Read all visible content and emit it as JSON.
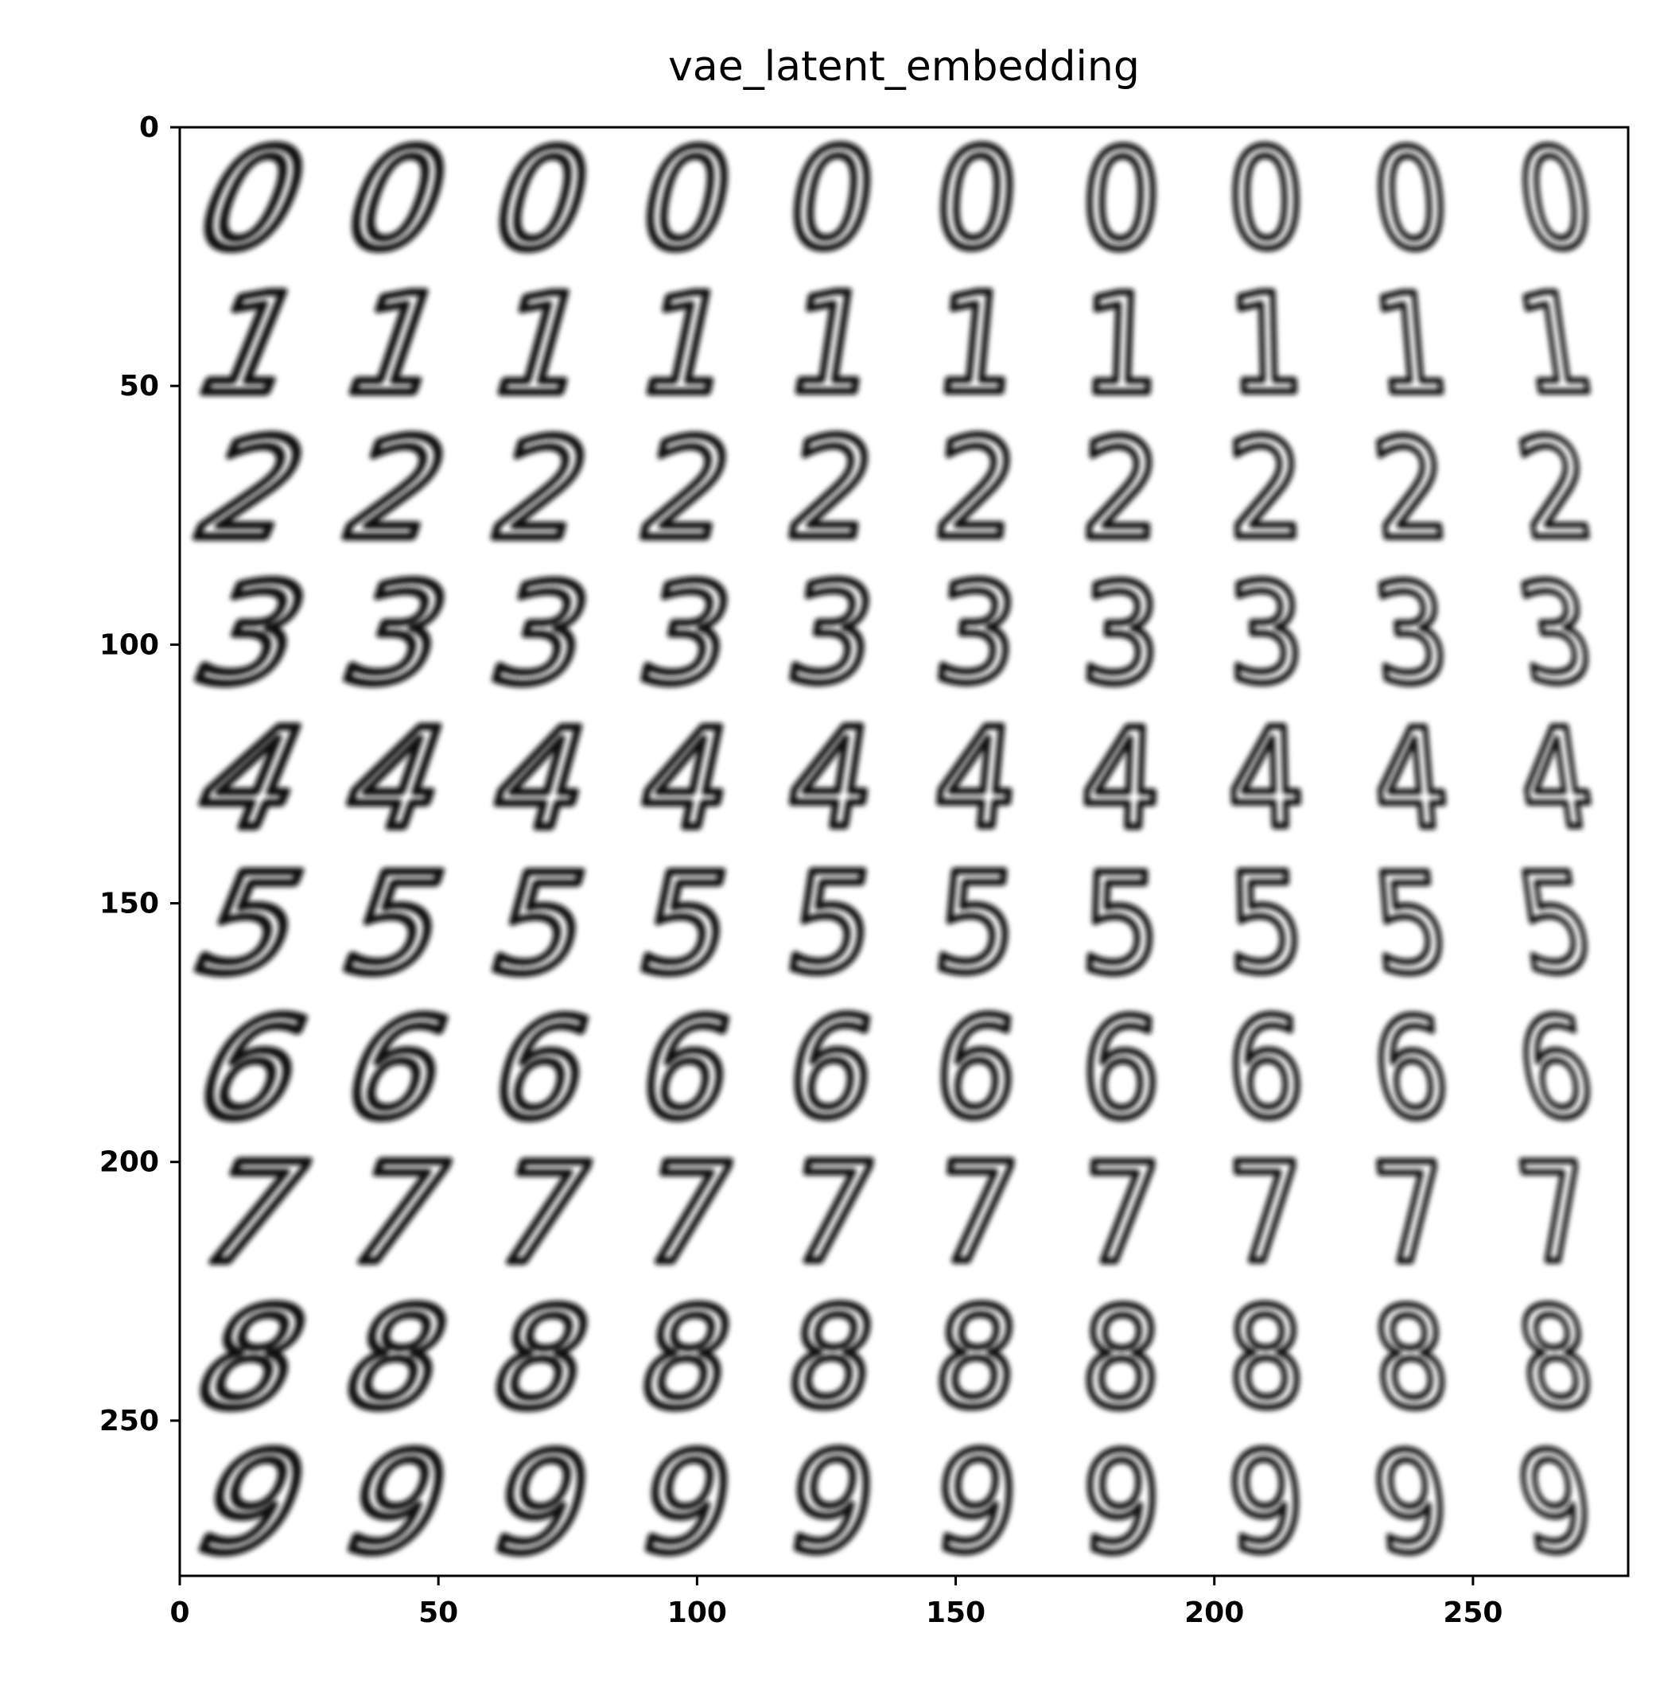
{
  "chart_data": {
    "type": "image-grid",
    "title": "vae_latent_embedding",
    "xlim": [
      0,
      280
    ],
    "ylim": [
      280,
      0
    ],
    "xticks": [
      0,
      50,
      100,
      150,
      200,
      250
    ],
    "yticks": [
      0,
      50,
      100,
      150,
      200,
      250
    ],
    "grid": false,
    "rows": [
      "0",
      "1",
      "2",
      "3",
      "4",
      "5",
      "6",
      "7",
      "8",
      "9"
    ],
    "columns": 10,
    "cell_size": 28
  }
}
